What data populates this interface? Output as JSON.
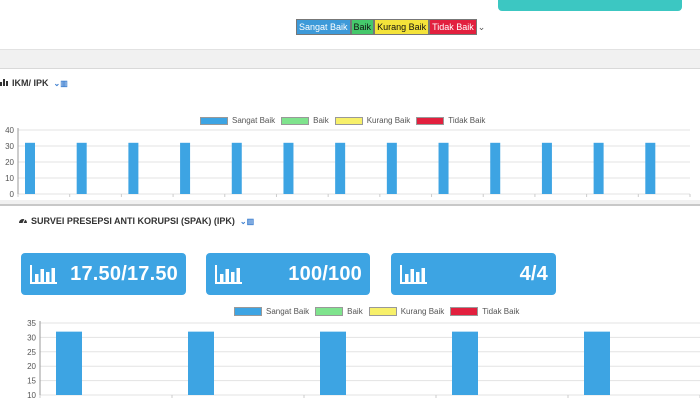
{
  "top_legend": {
    "items": [
      {
        "label": "Sangat Baik",
        "color": "#3d9ad9"
      },
      {
        "label": "Baik",
        "color": "#45c86b"
      },
      {
        "label": "Kurang Baik",
        "color": "#f4e33a"
      },
      {
        "label": "Tidak Baik",
        "color": "#e2203e"
      }
    ]
  },
  "panel_ikm": {
    "title": "IKM/ IPK",
    "title_icon": "chart-icon",
    "toggle_icon": "chevron-chart-toggle-icon",
    "legend": [
      "Sangat Baik",
      "Baik",
      "Kurang Baik",
      "Tidak Baik"
    ]
  },
  "panel_spak": {
    "title": "SURVEI PRESEPSI ANTI KORUPSI (SPAK) (IPK)",
    "title_icon": "gauge-icon",
    "toggle_icon": "chevron-chart-toggle-icon",
    "cards": [
      {
        "value": "17.50/17.50",
        "icon": "bar-chart-icon"
      },
      {
        "value": "100/100",
        "icon": "bar-chart-icon"
      },
      {
        "value": "4/4",
        "icon": "bar-chart-icon"
      }
    ],
    "legend": [
      "Sangat Baik",
      "Baik",
      "Kurang Baik",
      "Tidak Baik"
    ]
  },
  "colors": {
    "sangat_baik": "#3da4e3",
    "baik": "#7fe38d",
    "kurang_baik": "#f7f06a",
    "tidak_baik": "#e2203e",
    "top_button": "#3cc7c2",
    "card": "#3da4e3"
  },
  "chart_data": [
    {
      "type": "bar",
      "categories": [
        "",
        "",
        "",
        "",
        "",
        "",
        "",
        "",
        "",
        "",
        "",
        "",
        ""
      ],
      "series": [
        {
          "name": "Sangat Baik",
          "values": [
            32,
            32,
            32,
            32,
            32,
            32,
            32,
            32,
            32,
            32,
            32,
            32,
            32
          ]
        },
        {
          "name": "Baik",
          "values": [
            0,
            0,
            0,
            0,
            0,
            0,
            0,
            0,
            0,
            0,
            0,
            0,
            0
          ]
        },
        {
          "name": "Kurang Baik",
          "values": [
            0,
            0,
            0,
            0,
            0,
            0,
            0,
            0,
            0,
            0,
            0,
            0,
            0
          ]
        },
        {
          "name": "Tidak Baik",
          "values": [
            0,
            0,
            0,
            0,
            0,
            0,
            0,
            0,
            0,
            0,
            0,
            0,
            0
          ]
        }
      ],
      "yticks": [
        "0",
        "10",
        "20",
        "30",
        "40"
      ],
      "ylim": [
        0,
        40
      ],
      "grid": true,
      "legend": "top-center"
    },
    {
      "type": "bar",
      "categories": [
        "",
        "",
        "",
        "",
        ""
      ],
      "series": [
        {
          "name": "Sangat Baik",
          "values": [
            32,
            32,
            32,
            32,
            32
          ]
        },
        {
          "name": "Baik",
          "values": [
            0,
            0,
            0,
            0,
            0
          ]
        },
        {
          "name": "Kurang Baik",
          "values": [
            0,
            0,
            0,
            0,
            0
          ]
        },
        {
          "name": "Tidak Baik",
          "values": [
            0,
            0,
            0,
            0,
            0
          ]
        }
      ],
      "yticks": [
        "10",
        "15",
        "20",
        "25",
        "30",
        "35"
      ],
      "ylim": [
        10,
        35
      ],
      "grid": true,
      "legend": "top-center"
    }
  ]
}
